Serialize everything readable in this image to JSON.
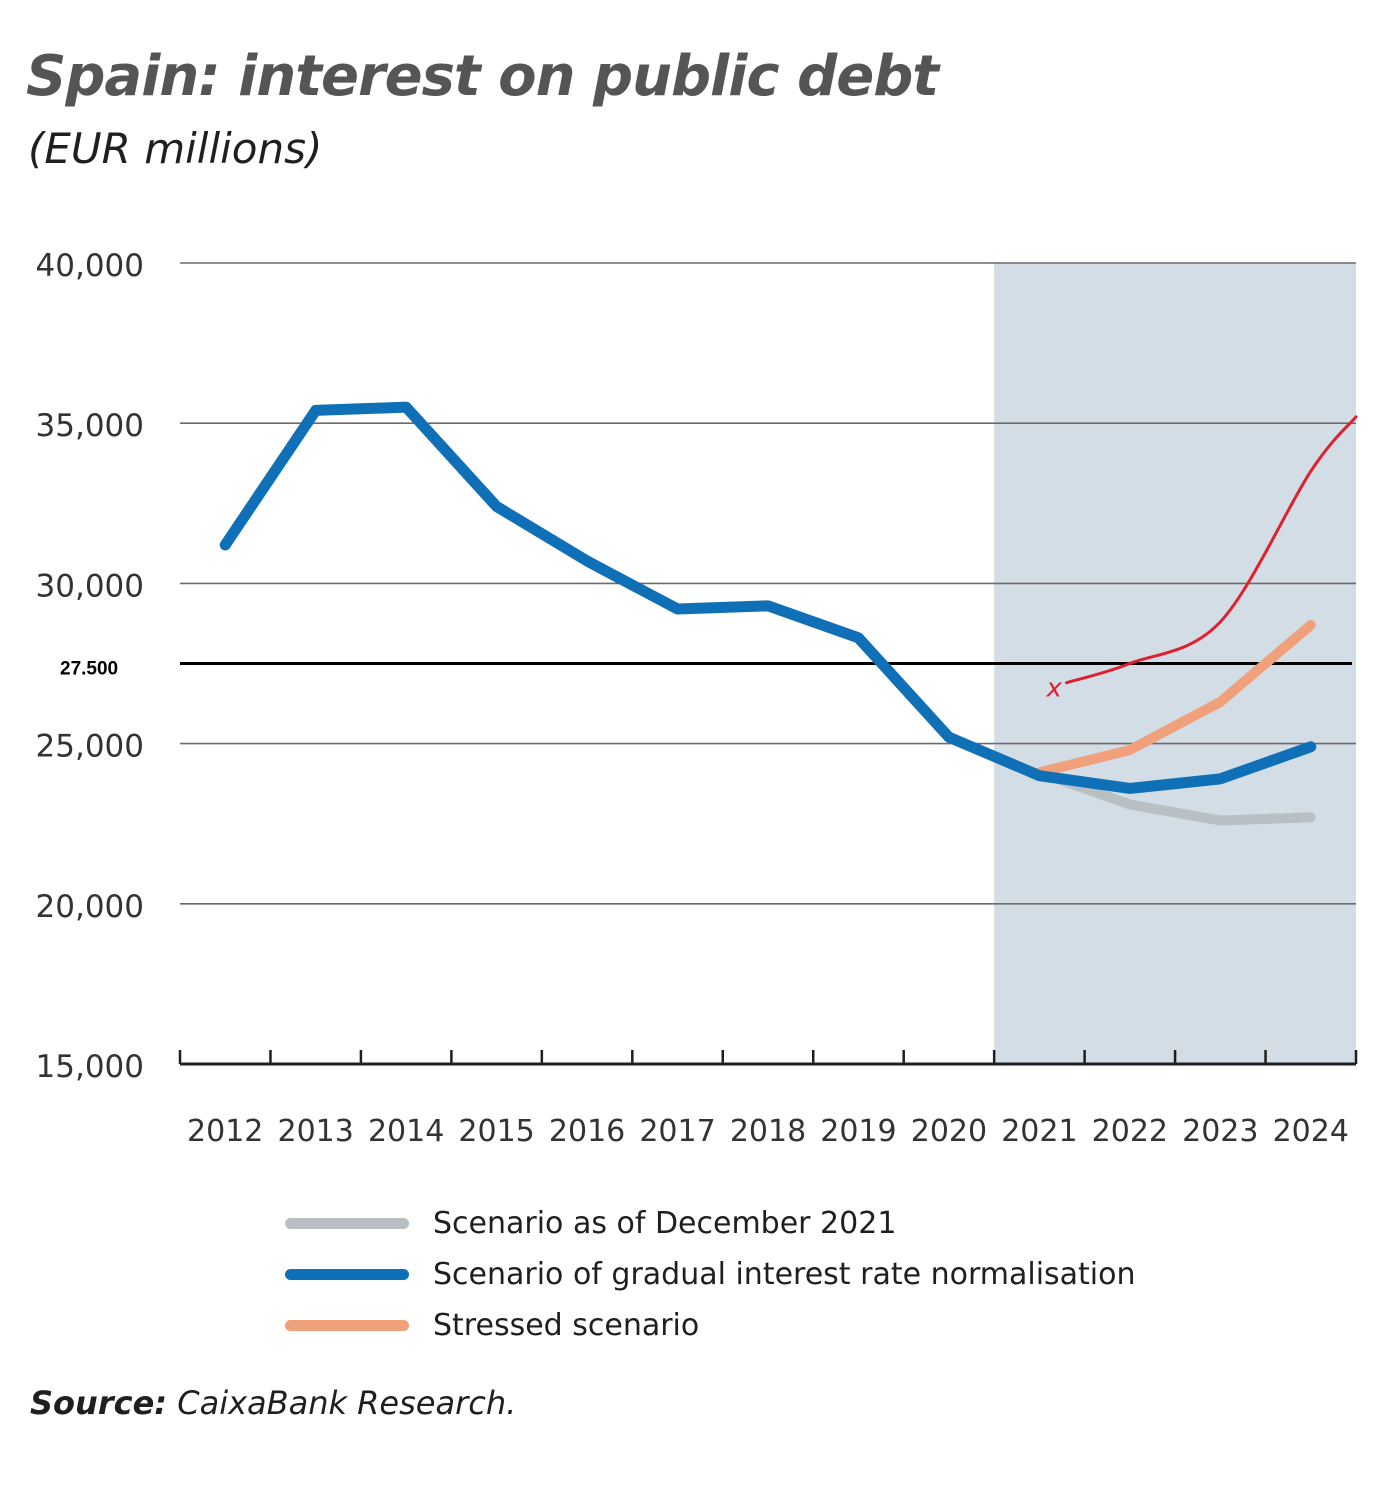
{
  "colors": {
    "shaded": "#d2dde5",
    "grid": "#6b6b6b",
    "axis": "#1f1f1f",
    "december": "#b9c0c3",
    "gradual": "#0f6fb7",
    "stressed": "#f0a07a",
    "reference": "#000000",
    "annotation": "#e0202e"
  },
  "chart_data": {
    "type": "line",
    "title": "Spain: interest on public debt",
    "subtitle": "(EUR millions)",
    "ylim": [
      15000,
      40000
    ],
    "yticks": [
      15000,
      20000,
      25000,
      30000,
      35000,
      40000
    ],
    "ytick_labels": [
      "15,000",
      "20,000",
      "25,000",
      "30,000",
      "35,000",
      "40,000"
    ],
    "categories": [
      "2012",
      "2013",
      "2014",
      "2015",
      "2016",
      "2017",
      "2018",
      "2019",
      "2020",
      "2021",
      "2022",
      "2023",
      "2024"
    ],
    "shaded_region": [
      "2021",
      "2024"
    ],
    "series": [
      {
        "name": "Scenario as of December 2021",
        "color_key": "december",
        "values": [
          null,
          null,
          null,
          null,
          null,
          null,
          null,
          null,
          null,
          24100,
          23100,
          22600,
          22700
        ]
      },
      {
        "name": "Scenario of gradual interest rate normalisation",
        "color_key": "gradual",
        "values": [
          31200,
          35400,
          35500,
          32400,
          30700,
          29200,
          29300,
          28300,
          25200,
          24000,
          23600,
          23900,
          24900
        ]
      },
      {
        "name": "Stressed scenario",
        "color_key": "stressed",
        "values": [
          null,
          null,
          null,
          null,
          null,
          null,
          null,
          null,
          null,
          24100,
          24800,
          26300,
          28700
        ]
      }
    ],
    "reference_line": {
      "value": 27500,
      "label": "27.500"
    },
    "annotation": {
      "marker_label": "x",
      "curve": [
        [
          2021.3,
          26900
        ],
        [
          2022,
          27500
        ],
        [
          2023,
          28800
        ],
        [
          2024,
          33500
        ],
        [
          2024.5,
          35200
        ]
      ]
    },
    "legend_position": "bottom"
  },
  "legend": [
    {
      "label": "Scenario as of December 2021",
      "color_key": "december"
    },
    {
      "label": "Scenario of gradual interest rate normalisation",
      "color_key": "gradual"
    },
    {
      "label": "Stressed scenario",
      "color_key": "stressed"
    }
  ],
  "source": {
    "prefix": "Source:",
    "text": " CaixaBank Research."
  }
}
